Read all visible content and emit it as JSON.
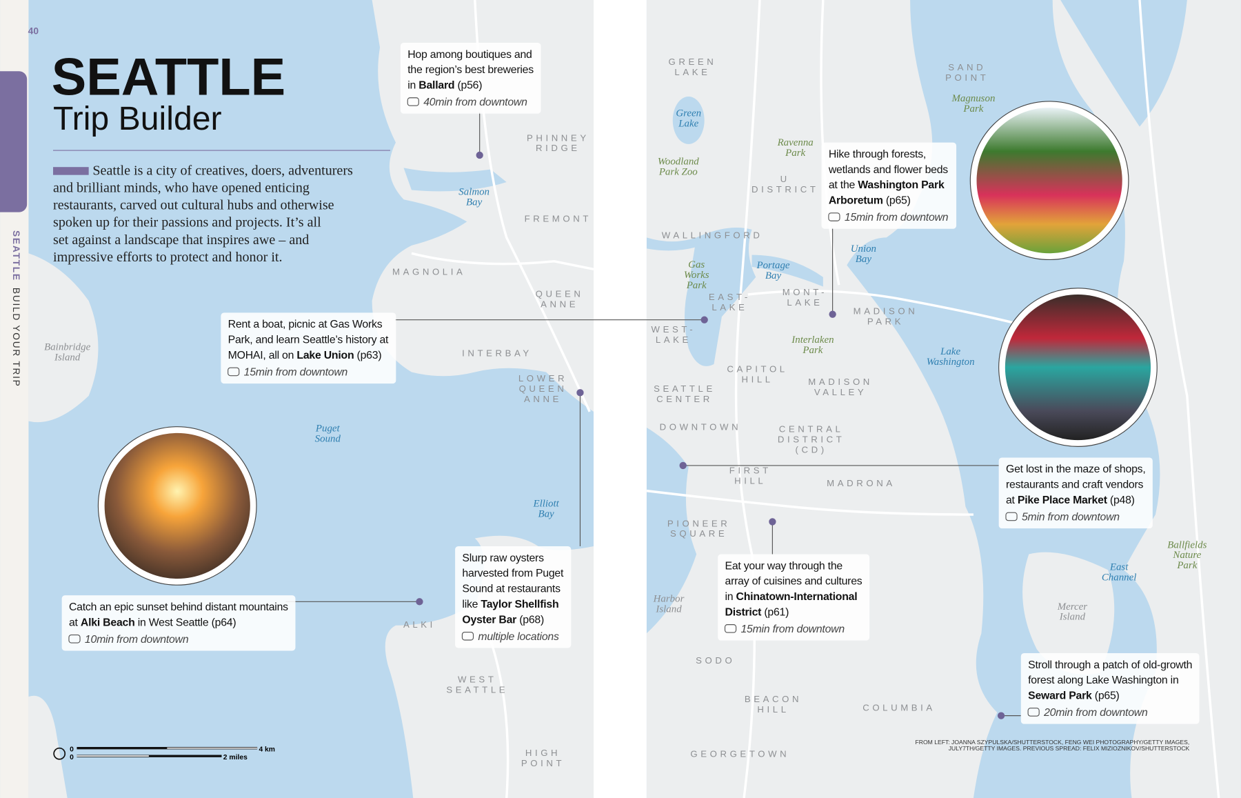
{
  "page_number": "40",
  "title": "SEATTLE",
  "subtitle": "Trip Builder",
  "side_tab": [
    "SEATTLE",
    "BUILD YOUR TRIP"
  ],
  "intro": [
    "Seattle is a city of creatives, doers, adventurers",
    "and brilliant minds, who have opened enticing",
    "restaurants, carved out cultural hubs and otherwise",
    "spoken up for their passions and projects. It’s all",
    "set against a landscape that inspires awe – and",
    "impressive efforts to protect and honor it."
  ],
  "callouts": [
    {
      "lines": [
        [
          "Hop among boutiques and"
        ],
        [
          "the region’s best breweries"
        ],
        [
          "in ",
          "Ballard",
          " (p56)"
        ]
      ],
      "time": "40min from downtown"
    },
    {
      "lines": [
        [
          "Rent a boat, picnic at Gas Works"
        ],
        [
          "Park, and learn Seattle’s history at"
        ],
        [
          "MOHAI, all on ",
          "Lake Union",
          " (p63)"
        ]
      ],
      "time": "15min from downtown"
    },
    {
      "lines": [
        [
          "Catch an epic sunset behind distant mountains"
        ],
        [
          "at ",
          "Alki Beach",
          " in West Seattle (p64)"
        ]
      ],
      "time": "10min from downtown"
    },
    {
      "lines": [
        [
          "Slurp raw oysters"
        ],
        [
          "harvested from Puget"
        ],
        [
          "Sound at restaurants"
        ],
        [
          "like ",
          "Taylor Shellfish"
        ],
        [
          "Oyster Bar",
          " (p68)"
        ]
      ],
      "time": "multiple locations"
    },
    {
      "lines": [
        [
          "Hike through forests,"
        ],
        [
          "wetlands and flower beds"
        ],
        [
          "at the ",
          "Washington Park"
        ],
        [
          "Arboretum",
          " (p65)"
        ]
      ],
      "time": "15min from downtown"
    },
    {
      "lines": [
        [
          "Get lost in the maze of shops,"
        ],
        [
          "restaurants and craft vendors"
        ],
        [
          "at ",
          "Pike Place Market",
          " (p48)"
        ]
      ],
      "time": "5min from downtown"
    },
    {
      "lines": [
        [
          "Eat your way through the"
        ],
        [
          "array of cuisines and cultures"
        ],
        [
          "in ",
          "Chinatown-International"
        ],
        [
          "District",
          " (p61)"
        ]
      ],
      "time": "15min from downtown"
    },
    {
      "lines": [
        [
          "Stroll through a patch of old-growth"
        ],
        [
          "forest along Lake Washington in"
        ],
        [
          "Seward Park",
          " (p65)"
        ]
      ],
      "time": "20min from downtown"
    }
  ],
  "district_labels": [
    [
      "PHINNEY",
      "RIDGE"
    ],
    [
      "FREMONT"
    ],
    [
      "MAGNOLIA"
    ],
    [
      "QUEEN",
      "ANNE"
    ],
    [
      "INTERBAY"
    ],
    [
      "LOWER",
      "QUEEN",
      "ANNE"
    ],
    [
      "ALKI"
    ],
    [
      "WEST",
      "SEATTLE"
    ],
    [
      "HIGH",
      "POINT"
    ],
    [
      "GREEN",
      "LAKE"
    ],
    [
      "U",
      "DISTRICT"
    ],
    [
      "SAND",
      "POINT"
    ],
    [
      "WALLINGFORD"
    ],
    [
      "EAST-",
      "LAKE"
    ],
    [
      "MONT-",
      "LAKE"
    ],
    [
      "MADISON",
      "PARK"
    ],
    [
      "WEST-",
      "LAKE"
    ],
    [
      "CAPITOL",
      "HILL"
    ],
    [
      "MADISON",
      "VALLEY"
    ],
    [
      "SEATTLE",
      "CENTER"
    ],
    [
      "DOWNTOWN"
    ],
    [
      "CENTRAL",
      "DISTRICT",
      "(CD)"
    ],
    [
      "FIRST",
      "HILL"
    ],
    [
      "MADRONA"
    ],
    [
      "PIONEER",
      "SQUARE"
    ],
    [
      "SODO"
    ],
    [
      "BEACON",
      "HILL"
    ],
    [
      "COLUMBIA"
    ],
    [
      "GEORGETOWN"
    ]
  ],
  "water_labels": [
    [
      "Salmon",
      "Bay"
    ],
    [
      "Puget",
      "Sound"
    ],
    [
      "Elliott",
      "Bay"
    ],
    [
      "Green",
      "Lake"
    ],
    [
      "Union",
      "Bay"
    ],
    [
      "Portage",
      "Bay"
    ],
    [
      "Lake",
      "Washington"
    ],
    [
      "East",
      "Channel"
    ]
  ],
  "park_labels": [
    [
      "Woodland",
      "Park Zoo"
    ],
    [
      "Ravenna",
      "Park"
    ],
    [
      "Magnuson",
      "Park"
    ],
    [
      "Gas",
      "Works",
      "Park"
    ],
    [
      "Interlaken",
      "Park"
    ],
    [
      "Ballfields",
      "Nature",
      "Park"
    ]
  ],
  "island_labels": [
    [
      "Bainbridge",
      "Island"
    ],
    [
      "Harbor",
      "Island"
    ],
    [
      "Mercer",
      "Island"
    ]
  ],
  "scale": {
    "km_start": "0",
    "km_end": "4 km",
    "mi_start": "0",
    "mi_end": "2 miles"
  },
  "credits": [
    "FROM LEFT: JOANNA SZYPULSKA/SHUTTERSTOCK, FENG WEI PHOTOGRAPHY/GETTY IMAGES,",
    "JULY7TH/GETTY IMAGES. PREVIOUS SPREAD: FELIX MIZIOZNIKOV/SHUTTERSTOCK"
  ]
}
